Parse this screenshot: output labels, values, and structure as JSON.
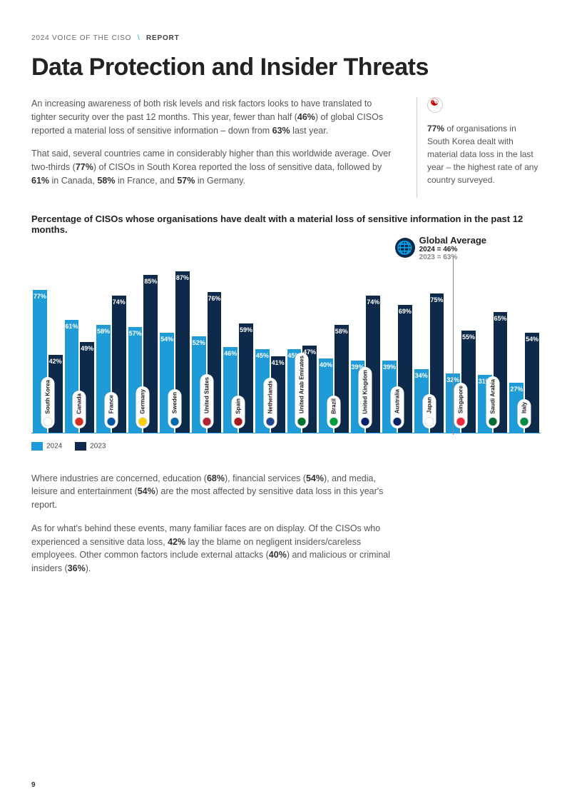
{
  "header": {
    "prefix": "2024 VOICE OF THE CISO",
    "suffix": "REPORT"
  },
  "title": "Data Protection and Insider Threats",
  "para1": "An increasing awareness of both risk levels and risk factors looks to have translated to tighter security over the past 12 months. This year, fewer than half (46%) of global CISOs reported a material loss of sensitive information – down from 63% last year.",
  "para2": "That said, several countries came in considerably higher than this worldwide average. Over two-thirds (77%) of CISOs in South Korea reported the loss of sensitive data, followed by 61% in Canada, 58% in France, and 57% in Germany.",
  "side": "77% of organisations in South Korea dealt with material data loss in the last year – the highest rate of any country surveyed.",
  "chart_title": "Percentage of CISOs whose organisations have dealt with a material loss of sensitive information in the past 12 months.",
  "global": {
    "title": "Global Average",
    "y2024": "2024 = 46%",
    "y2023": "2023 = 63%"
  },
  "legend": {
    "a": "2024",
    "b": "2023"
  },
  "chart": {
    "max": 100,
    "color_2024": "#1f9bd7",
    "color_2023": "#0e2a4a",
    "countries": [
      {
        "name": "South Korea",
        "flag": "#fff",
        "v2024": 77,
        "v2023": 42
      },
      {
        "name": "Canada",
        "flag": "#d52b1e",
        "v2024": 61,
        "v2023": 49
      },
      {
        "name": "France",
        "flag": "#0055a4",
        "v2024": 58,
        "v2023": 74
      },
      {
        "name": "Germany",
        "flag": "#ffce00",
        "v2024": 57,
        "v2023": 85
      },
      {
        "name": "Sweden",
        "flag": "#006aa7",
        "v2024": 54,
        "v2023": 87
      },
      {
        "name": "United States",
        "flag": "#b22234",
        "v2024": 52,
        "v2023": 76
      },
      {
        "name": "Spain",
        "flag": "#aa151b",
        "v2024": 46,
        "v2023": 59
      },
      {
        "name": "Netherlands",
        "flag": "#21468b",
        "v2024": 45,
        "v2023": 41
      },
      {
        "name": "United Arab Emirates",
        "flag": "#00732f",
        "v2024": 45,
        "v2023": 47
      },
      {
        "name": "Brazil",
        "flag": "#009b3a",
        "v2024": 40,
        "v2023": 58
      },
      {
        "name": "United Kingdom",
        "flag": "#012169",
        "v2024": 39,
        "v2023": 74
      },
      {
        "name": "Australia",
        "flag": "#012169",
        "v2024": 39,
        "v2023": 69
      },
      {
        "name": "Japan",
        "flag": "#fff",
        "v2024": 34,
        "v2023": 75
      },
      {
        "name": "Singapore",
        "flag": "#ed2939",
        "v2024": 32,
        "v2023": 55
      },
      {
        "name": "Saudi Arabia",
        "flag": "#006c35",
        "v2024": 31,
        "v2023": 65
      },
      {
        "name": "Italy",
        "flag": "#008c45",
        "v2024": 27,
        "v2023": 54
      }
    ]
  },
  "para3": "Where industries are concerned, education (68%), financial services (54%), and media, leisure and entertainment (54%) are the most affected by sensitive data loss in this year's report.",
  "para4": "As for what's behind these events, many familiar faces are on display. Of the CISOs who experienced a sensitive data loss, 42% lay the blame on negligent insiders/careless employees. Other common factors include external attacks (40%) and malicious or criminal insiders (36%).",
  "pagenum": "9"
}
